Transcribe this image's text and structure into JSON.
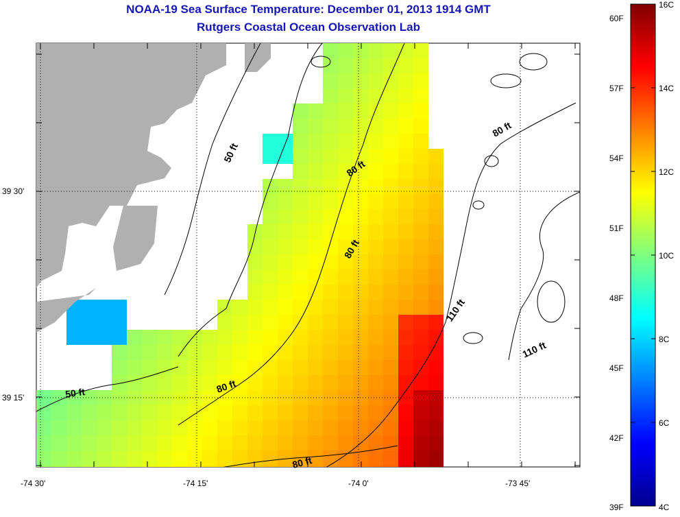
{
  "header": {
    "title": "NOAA-19 Sea Surface Temperature:  December 01, 2013 1914 GMT",
    "subtitle": "Rutgers Coastal Ocean Observation Lab"
  },
  "map": {
    "x_ticks": [
      "-74 30'",
      "-74 15'",
      "-74 0'",
      "-73 45'"
    ],
    "y_ticks": [
      "39 30'",
      "39 15'"
    ],
    "contour_labels": [
      "50 ft",
      "80 ft",
      "80 ft",
      "80 ft",
      "80 ft",
      "110 ft",
      "110 ft",
      "50 ft",
      "80 ft"
    ],
    "land_color": "#b0b0b0"
  },
  "colorbar": {
    "fahrenheit": [
      "60F",
      "57F",
      "54F",
      "51F",
      "48F",
      "45F",
      "42F",
      "39F"
    ],
    "celsius": [
      "16C",
      "14C",
      "12C",
      "10C",
      "8C",
      "6C",
      "4C"
    ],
    "range_c": [
      4,
      16
    ],
    "colormap": "jet"
  }
}
